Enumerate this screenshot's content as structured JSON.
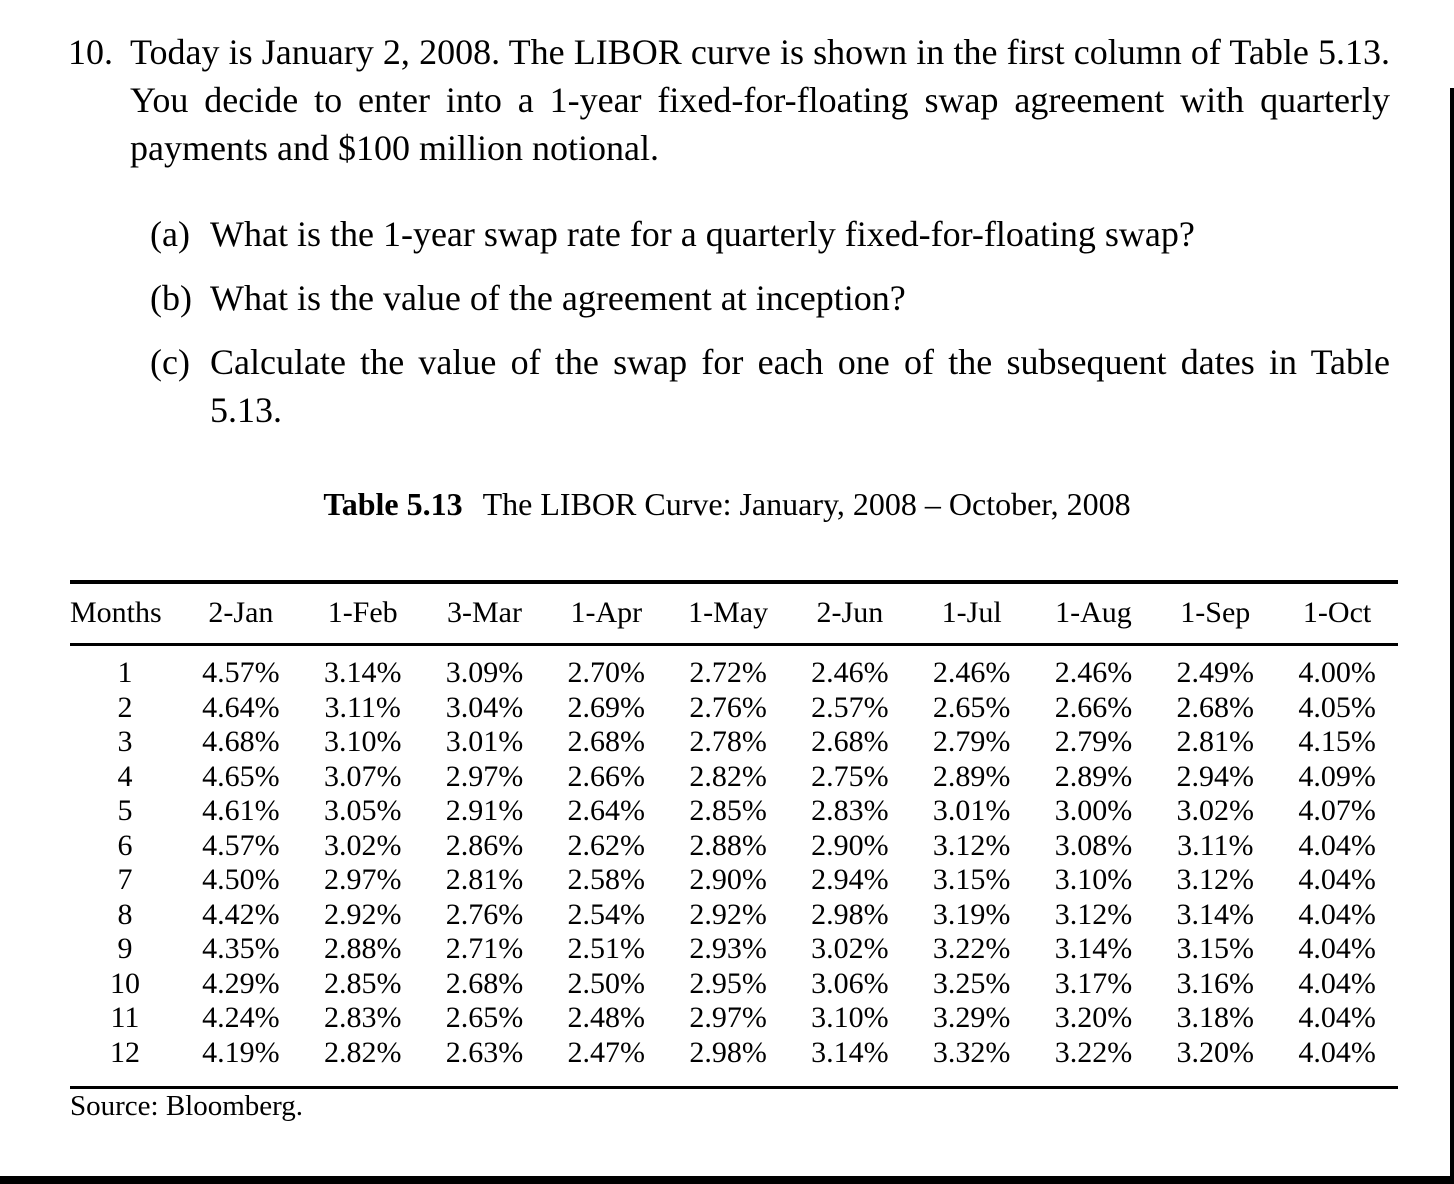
{
  "problem": {
    "number": "10.",
    "lines": [
      "Today is January 2, 2008. The LIBOR curve is shown in the first column of Table 5.13.",
      "You decide to enter into a 1-year fixed-for-floating swap agreement with quarterly",
      "payments and $100 million notional."
    ],
    "items": [
      {
        "label": "(a)",
        "lines": [
          "What is the 1-year swap rate for a quarterly fixed-for-floating swap?"
        ]
      },
      {
        "label": "(b)",
        "lines": [
          "What is the value of the agreement at inception?"
        ]
      },
      {
        "label": "(c)",
        "lines": [
          "Calculate the value of the swap for each one of the subsequent dates in Table",
          "5.13."
        ]
      }
    ]
  },
  "table": {
    "caption_label": "Table 5.13",
    "caption_text": "The LIBOR Curve: January, 2008 – October, 2008",
    "headers": [
      "Months",
      "2-Jan",
      "1-Feb",
      "3-Mar",
      "1-Apr",
      "1-May",
      "2-Jun",
      "1-Jul",
      "1-Aug",
      "1-Sep",
      "1-Oct"
    ],
    "rows": [
      {
        "month": "1",
        "rates": [
          "4.57%",
          "3.14%",
          "3.09%",
          "2.70%",
          "2.72%",
          "2.46%",
          "2.46%",
          "2.46%",
          "2.49%",
          "4.00%"
        ]
      },
      {
        "month": "2",
        "rates": [
          "4.64%",
          "3.11%",
          "3.04%",
          "2.69%",
          "2.76%",
          "2.57%",
          "2.65%",
          "2.66%",
          "2.68%",
          "4.05%"
        ]
      },
      {
        "month": "3",
        "rates": [
          "4.68%",
          "3.10%",
          "3.01%",
          "2.68%",
          "2.78%",
          "2.68%",
          "2.79%",
          "2.79%",
          "2.81%",
          "4.15%"
        ]
      },
      {
        "month": "4",
        "rates": [
          "4.65%",
          "3.07%",
          "2.97%",
          "2.66%",
          "2.82%",
          "2.75%",
          "2.89%",
          "2.89%",
          "2.94%",
          "4.09%"
        ]
      },
      {
        "month": "5",
        "rates": [
          "4.61%",
          "3.05%",
          "2.91%",
          "2.64%",
          "2.85%",
          "2.83%",
          "3.01%",
          "3.00%",
          "3.02%",
          "4.07%"
        ]
      },
      {
        "month": "6",
        "rates": [
          "4.57%",
          "3.02%",
          "2.86%",
          "2.62%",
          "2.88%",
          "2.90%",
          "3.12%",
          "3.08%",
          "3.11%",
          "4.04%"
        ]
      },
      {
        "month": "7",
        "rates": [
          "4.50%",
          "2.97%",
          "2.81%",
          "2.58%",
          "2.90%",
          "2.94%",
          "3.15%",
          "3.10%",
          "3.12%",
          "4.04%"
        ]
      },
      {
        "month": "8",
        "rates": [
          "4.42%",
          "2.92%",
          "2.76%",
          "2.54%",
          "2.92%",
          "2.98%",
          "3.19%",
          "3.12%",
          "3.14%",
          "4.04%"
        ]
      },
      {
        "month": "9",
        "rates": [
          "4.35%",
          "2.88%",
          "2.71%",
          "2.51%",
          "2.93%",
          "3.02%",
          "3.22%",
          "3.14%",
          "3.15%",
          "4.04%"
        ]
      },
      {
        "month": "10",
        "rates": [
          "4.29%",
          "2.85%",
          "2.68%",
          "2.50%",
          "2.95%",
          "3.06%",
          "3.25%",
          "3.17%",
          "3.16%",
          "4.04%"
        ]
      },
      {
        "month": "11",
        "rates": [
          "4.24%",
          "2.83%",
          "2.65%",
          "2.48%",
          "2.97%",
          "3.10%",
          "3.29%",
          "3.20%",
          "3.18%",
          "4.04%"
        ]
      },
      {
        "month": "12",
        "rates": [
          "4.19%",
          "2.82%",
          "2.63%",
          "2.47%",
          "2.98%",
          "3.14%",
          "3.32%",
          "3.22%",
          "3.20%",
          "4.04%"
        ]
      }
    ],
    "source": "Source: Bloomberg."
  }
}
